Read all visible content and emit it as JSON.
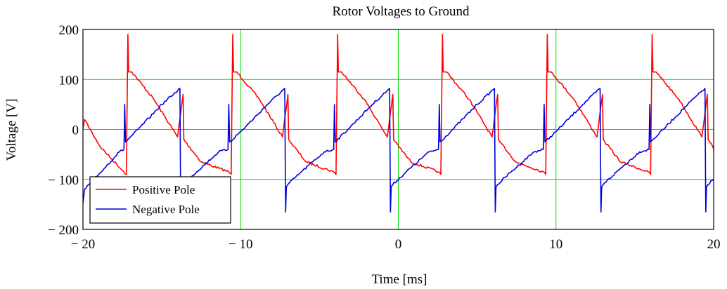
{
  "chart_data": {
    "type": "line",
    "title": "Rotor Voltages to Ground",
    "xlabel": "Time [ms]",
    "ylabel": "Voltage [V]",
    "xlim": [
      -20,
      20
    ],
    "ylim": [
      -200,
      200
    ],
    "x_ticks": [
      -20,
      -10,
      0,
      10,
      20
    ],
    "y_ticks": [
      -200,
      -100,
      0,
      100,
      200
    ],
    "x_tick_labels": [
      "− 20",
      "− 10",
      "0",
      "10",
      "20"
    ],
    "y_tick_labels": [
      "− 200",
      "− 100",
      "0",
      "100",
      "200"
    ],
    "grid": true,
    "grid_color": "#00dd00",
    "legend_position": "bottom-left",
    "period_ms": 6.67,
    "series": [
      {
        "name": "Positive Pole",
        "color": "#ff0000",
        "x": [
          -20.2,
          -19.9,
          -18.9,
          -17.4,
          -17.25,
          -17.15,
          -17.1,
          -17.0,
          -16.9,
          -15.5,
          -14.0,
          -13.65,
          -13.6,
          -13.5,
          -12.5,
          -10.75,
          -10.6,
          -10.5,
          -10.45,
          -10.35,
          -10.25,
          -8.8,
          -7.35,
          -7.0,
          -6.95,
          -6.85,
          -5.85,
          -4.1,
          -3.95,
          -3.85,
          -3.8,
          -3.7,
          -3.6,
          -2.15,
          -0.7,
          -0.35,
          -0.3,
          -0.2,
          0.8,
          2.55,
          2.7,
          2.8,
          2.85,
          2.95,
          3.05,
          4.5,
          5.95,
          6.3,
          6.35,
          6.45,
          7.45,
          9.2,
          9.35,
          9.45,
          9.5,
          9.6,
          9.7,
          11.15,
          12.6,
          12.95,
          13.0,
          13.1,
          14.1,
          15.85,
          16.0,
          16.1,
          16.15,
          16.25,
          16.35,
          17.8,
          19.25,
          19.6,
          19.65,
          19.75,
          20.5
        ],
        "y": [
          -30,
          20,
          -35,
          -85,
          -90,
          190,
          115,
          115,
          115,
          60,
          -15,
          70,
          -20,
          -25,
          -65,
          -85,
          -90,
          190,
          115,
          115,
          115,
          60,
          -15,
          70,
          -20,
          -25,
          -65,
          -85,
          -90,
          190,
          115,
          115,
          115,
          60,
          -15,
          70,
          -20,
          -25,
          -65,
          -85,
          -90,
          190,
          115,
          115,
          115,
          60,
          -15,
          70,
          -20,
          -25,
          -65,
          -85,
          -90,
          190,
          115,
          115,
          115,
          60,
          -15,
          70,
          -20,
          -25,
          -65,
          -85,
          -90,
          190,
          115,
          115,
          115,
          60,
          -15,
          70,
          -20,
          -25,
          -65
        ]
      },
      {
        "name": "Negative Pole",
        "color": "#0000dd",
        "x": [
          -20.2,
          -20.05,
          -19.9,
          -19.0,
          -17.7,
          -17.4,
          -17.35,
          -17.3,
          -16.5,
          -15.0,
          -13.85,
          -13.8,
          -13.75,
          -13.65,
          -12.8,
          -11.4,
          -10.8,
          -10.75,
          -10.7,
          -9.85,
          -8.3,
          -7.2,
          -7.15,
          -7.1,
          -7.0,
          -6.15,
          -4.7,
          -4.1,
          -4.05,
          -4.0,
          -3.2,
          -1.65,
          -0.55,
          -0.5,
          -0.45,
          -0.35,
          0.5,
          1.95,
          2.55,
          2.6,
          2.65,
          3.45,
          5.0,
          6.1,
          6.15,
          6.2,
          6.3,
          7.15,
          8.6,
          9.2,
          9.25,
          9.3,
          10.15,
          11.7,
          12.8,
          12.85,
          12.9,
          13.0,
          13.85,
          15.3,
          15.9,
          15.95,
          16.0,
          16.8,
          18.35,
          19.45,
          19.5,
          19.55,
          19.65,
          20.5
        ],
        "y": [
          -100,
          -160,
          -120,
          -90,
          -45,
          -40,
          50,
          -25,
          0,
          50,
          82,
          -165,
          -115,
          -110,
          -85,
          -45,
          -40,
          50,
          -25,
          0,
          50,
          82,
          -165,
          -115,
          -110,
          -85,
          -45,
          -40,
          50,
          -25,
          0,
          50,
          82,
          -165,
          -115,
          -110,
          -85,
          -45,
          -40,
          50,
          -25,
          0,
          50,
          82,
          -165,
          -115,
          -110,
          -85,
          -45,
          -40,
          50,
          -25,
          0,
          50,
          82,
          -165,
          -115,
          -110,
          -85,
          -45,
          -40,
          50,
          -25,
          0,
          50,
          82,
          -165,
          -115,
          -110,
          -85
        ]
      }
    ]
  }
}
